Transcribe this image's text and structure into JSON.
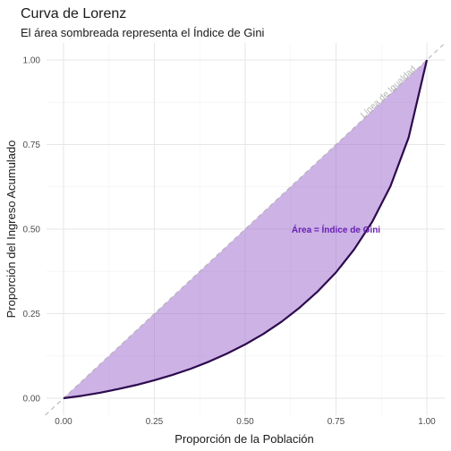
{
  "chart_data": {
    "type": "area",
    "title": "Curva de Lorenz",
    "subtitle": "El área sombreada representa el Índice de Gini",
    "xlabel": "Proporción de la Población",
    "ylabel": "Proporción del Ingreso Acumulado",
    "xlim": [
      0,
      1
    ],
    "ylim": [
      0,
      1
    ],
    "x_ticks": [
      "0.00",
      "0.25",
      "0.50",
      "0.75",
      "1.00"
    ],
    "y_ticks": [
      "0.00",
      "0.25",
      "0.50",
      "0.75",
      "1.00"
    ],
    "grid": true,
    "series": [
      {
        "x": [
          0,
          0.05,
          0.1,
          0.15,
          0.2,
          0.25,
          0.3,
          0.35,
          0.4,
          0.45,
          0.5,
          0.55,
          0.6,
          0.65,
          0.7,
          0.75,
          0.8,
          0.85,
          0.9,
          0.95,
          1.0
        ],
        "y": [
          0,
          0.007,
          0.016,
          0.027,
          0.039,
          0.053,
          0.069,
          0.087,
          0.108,
          0.132,
          0.159,
          0.19,
          0.226,
          0.268,
          0.316,
          0.372,
          0.44,
          0.522,
          0.627,
          0.771,
          1.0
        ],
        "color": "#2d0a4e"
      }
    ],
    "equality_line": {
      "label": "Línea de Igualdad",
      "color": "#b3b3b3"
    },
    "shaded_area": {
      "fill": "#9966cc",
      "opacity": 0.5
    },
    "annotation": {
      "text": "Área = Índice de Gini",
      "x": 0.75,
      "y": 0.5,
      "color": "#6a1fb5"
    }
  }
}
